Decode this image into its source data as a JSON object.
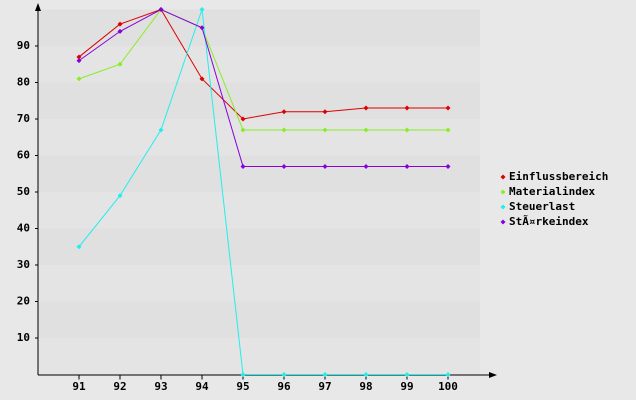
{
  "chart_data": {
    "type": "line",
    "categories": [
      "91",
      "92",
      "93",
      "94",
      "95",
      "96",
      "97",
      "98",
      "99",
      "100"
    ],
    "series": [
      {
        "name": "Einflussbereich",
        "color": "#dd0000",
        "values": [
          87,
          96,
          100,
          81,
          70,
          72,
          72,
          73,
          73,
          73
        ]
      },
      {
        "name": "Materialindex",
        "color": "#88ee22",
        "values": [
          81,
          85,
          100,
          95,
          67,
          67,
          67,
          67,
          67,
          67
        ]
      },
      {
        "name": "Steuerlast",
        "color": "#22eeee",
        "values": [
          35,
          49,
          67,
          100,
          0,
          0,
          0,
          0,
          0,
          0
        ]
      },
      {
        "name": "StÃ¤rkeindex",
        "color": "#8800dd",
        "values": [
          86,
          94,
          100,
          95,
          57,
          57,
          57,
          57,
          57,
          57
        ]
      }
    ],
    "ylim": [
      0,
      100
    ],
    "yticks": [
      10,
      20,
      30,
      40,
      50,
      60,
      70,
      80,
      90
    ],
    "grid": true,
    "legend": "right"
  }
}
